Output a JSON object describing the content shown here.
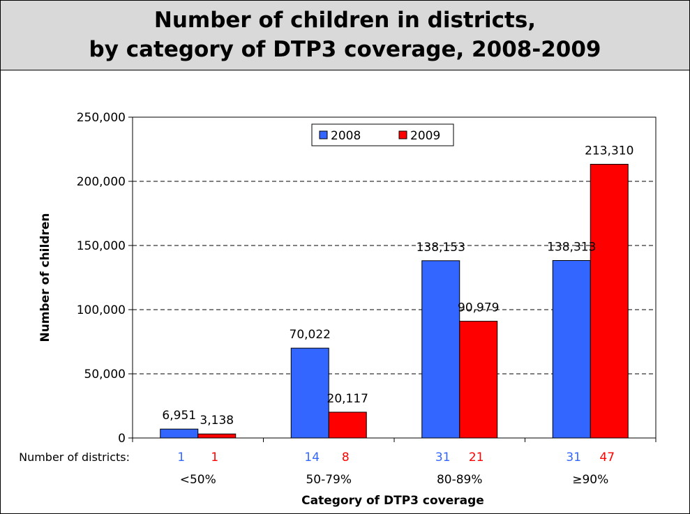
{
  "title": {
    "line1": "Number of children in districts,",
    "line2": "by category of DTP3 coverage, 2008-2009"
  },
  "colors": {
    "s2008": "#3366ff",
    "s2009": "#ff0000",
    "title_bg": "#d9d9d9"
  },
  "chart_data": {
    "type": "bar",
    "title": "Number of children in districts, by category of DTP3 coverage, 2008-2009",
    "xlabel": "Category of DTP3 coverage",
    "ylabel": "Number of children",
    "categories": [
      "<50%",
      "50-79%",
      "80-89%",
      "≥90%"
    ],
    "series": [
      {
        "name": "2008",
        "values": [
          6951,
          70022,
          138153,
          138313
        ],
        "labels": [
          "6,951",
          "70,022",
          "138,153",
          "138,313"
        ],
        "districts": [
          "1",
          "14",
          "31",
          "31"
        ]
      },
      {
        "name": "2009",
        "values": [
          3138,
          20117,
          90979,
          213310
        ],
        "labels": [
          "3,138",
          "20,117",
          "90,979",
          "213,310"
        ],
        "districts": [
          "1",
          "8",
          "21",
          "47"
        ]
      }
    ],
    "ylim": [
      0,
      250000
    ],
    "yticks": [
      0,
      50000,
      100000,
      150000,
      200000,
      250000
    ],
    "ytick_labels": [
      "0",
      "50,000",
      "100,000",
      "150,000",
      "200,000",
      "250,000"
    ],
    "districts_label": "Number of districts:",
    "grid": "horizontal dashed",
    "legend": "top-center"
  }
}
